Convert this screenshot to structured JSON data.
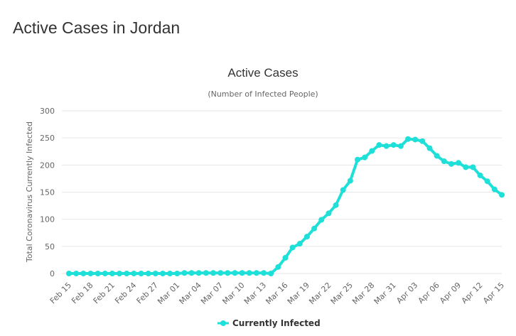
{
  "page": {
    "title": "Active Cases in Jordan"
  },
  "colors": {
    "series": "#1ee0d8",
    "grid": "#e6e6e6",
    "text": "#666666",
    "title": "#333333"
  },
  "chart_data": {
    "type": "line",
    "title": "Active Cases",
    "subtitle": "(Number of Infected People)",
    "ylabel": "Total Coronavirus Currently Infected",
    "xlabel": "",
    "ylim": [
      0,
      300
    ],
    "yticks": [
      0,
      50,
      100,
      150,
      200,
      250,
      300
    ],
    "grid": true,
    "legend_position": "bottom-center",
    "x": [
      "Feb 15",
      "Feb 16",
      "Feb 17",
      "Feb 18",
      "Feb 19",
      "Feb 20",
      "Feb 21",
      "Feb 22",
      "Feb 23",
      "Feb 24",
      "Feb 25",
      "Feb 26",
      "Feb 27",
      "Feb 28",
      "Feb 29",
      "Mar 01",
      "Mar 02",
      "Mar 03",
      "Mar 04",
      "Mar 05",
      "Mar 06",
      "Mar 07",
      "Mar 08",
      "Mar 09",
      "Mar 10",
      "Mar 11",
      "Mar 12",
      "Mar 13",
      "Mar 14",
      "Mar 15",
      "Mar 16",
      "Mar 17",
      "Mar 18",
      "Mar 19",
      "Mar 20",
      "Mar 21",
      "Mar 22",
      "Mar 23",
      "Mar 24",
      "Mar 25",
      "Mar 26",
      "Mar 27",
      "Mar 28",
      "Mar 29",
      "Mar 30",
      "Mar 31",
      "Apr 01",
      "Apr 02",
      "Apr 03",
      "Apr 04",
      "Apr 05",
      "Apr 06",
      "Apr 07",
      "Apr 08",
      "Apr 09",
      "Apr 10",
      "Apr 11",
      "Apr 12",
      "Apr 13",
      "Apr 14",
      "Apr 15"
    ],
    "xtick_labels": [
      "Feb 15",
      "Feb 18",
      "Feb 21",
      "Feb 24",
      "Feb 27",
      "Mar 01",
      "Mar 04",
      "Mar 07",
      "Mar 10",
      "Mar 13",
      "Mar 16",
      "Mar 19",
      "Mar 22",
      "Mar 25",
      "Mar 28",
      "Mar 31",
      "Apr 03",
      "Apr 06",
      "Apr 09",
      "Apr 12",
      "Apr 15"
    ],
    "series": [
      {
        "name": "Currently Infected",
        "values": [
          0,
          0,
          0,
          0,
          0,
          0,
          0,
          0,
          0,
          0,
          0,
          0,
          0,
          0,
          0,
          0,
          1,
          1,
          1,
          1,
          1,
          1,
          1,
          1,
          1,
          1,
          1,
          1,
          0,
          12,
          29,
          48,
          55,
          68,
          83,
          99,
          111,
          126,
          154,
          171,
          210,
          214,
          226,
          237,
          235,
          237,
          235,
          248,
          247,
          244,
          231,
          217,
          207,
          202,
          204,
          196,
          196,
          181,
          170,
          155,
          145
        ]
      }
    ]
  }
}
